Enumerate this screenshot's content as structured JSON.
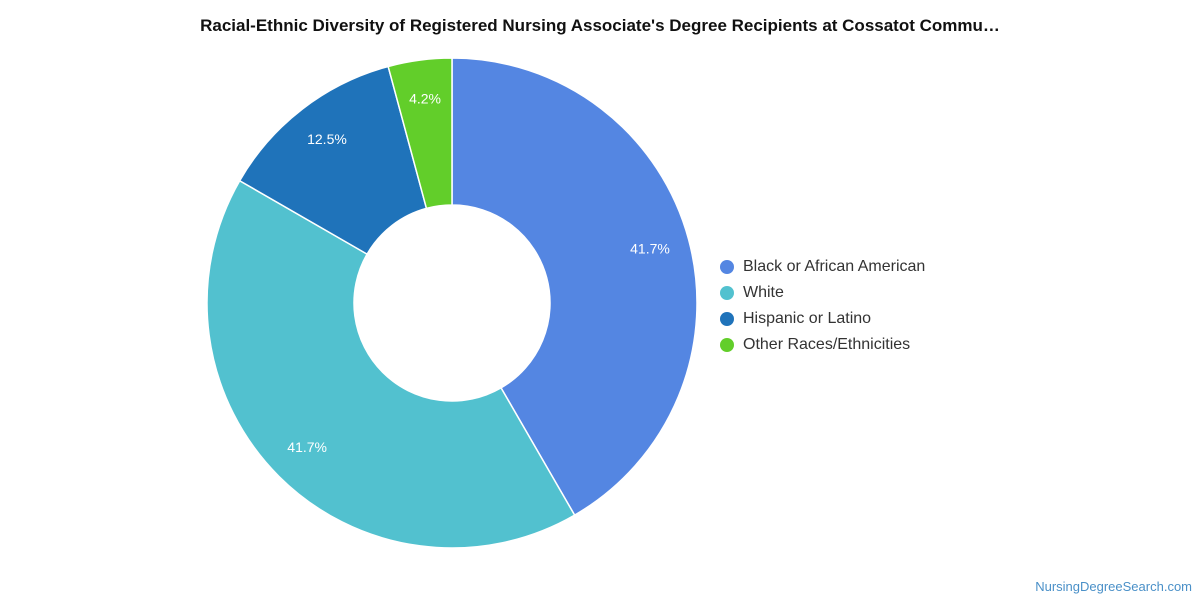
{
  "chart_data": {
    "type": "pie",
    "title": "Racial-Ethnic Diversity of Registered Nursing Associate's Degree Recipients at Cossatot Commu…",
    "donut": true,
    "legend_position": "right",
    "slices": [
      {
        "label": "Black or African American",
        "value": 41.7,
        "display": "41.7%",
        "color": "#5486E2"
      },
      {
        "label": "White",
        "value": 41.7,
        "display": "41.7%",
        "color": "#52C1CF"
      },
      {
        "label": "Hispanic or Latino",
        "value": 12.5,
        "display": "12.5%",
        "color": "#1F73BA"
      },
      {
        "label": "Other Races/Ethnicities",
        "value": 4.2,
        "display": "4.2%",
        "color": "#62CE2A"
      }
    ]
  },
  "footer": {
    "credit": "NursingDegreeSearch.com"
  }
}
